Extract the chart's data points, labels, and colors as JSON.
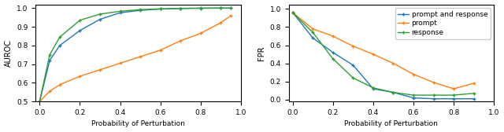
{
  "x_auroc": [
    0.0,
    0.05,
    0.1,
    0.2,
    0.3,
    0.4,
    0.5,
    0.6,
    0.7,
    0.8,
    0.9,
    0.95
  ],
  "auroc_prompt_and_response": [
    0.5,
    0.72,
    0.8,
    0.88,
    0.94,
    0.975,
    0.988,
    0.995,
    0.998,
    0.999,
    1.0,
    1.0
  ],
  "auroc_prompt": [
    0.5,
    0.555,
    0.59,
    0.635,
    0.67,
    0.705,
    0.74,
    0.775,
    0.825,
    0.865,
    0.922,
    0.96
  ],
  "auroc_response": [
    0.5,
    0.75,
    0.845,
    0.935,
    0.968,
    0.983,
    0.992,
    0.996,
    0.999,
    1.0,
    1.0,
    1.0
  ],
  "x_fpr": [
    0.0,
    0.1,
    0.2,
    0.3,
    0.4,
    0.5,
    0.6,
    0.7,
    0.8,
    0.9
  ],
  "fpr_prompt_and_response": [
    0.96,
    0.68,
    0.52,
    0.38,
    0.12,
    0.08,
    0.02,
    0.01,
    0.01,
    0.01
  ],
  "fpr_prompt": [
    0.96,
    0.78,
    0.7,
    0.59,
    0.5,
    0.4,
    0.28,
    0.19,
    0.12,
    0.18
  ],
  "fpr_response": [
    0.96,
    0.74,
    0.45,
    0.24,
    0.13,
    0.08,
    0.05,
    0.05,
    0.05,
    0.07
  ],
  "color_prompt_and_response": "#1f77b4",
  "color_prompt": "#ff7f0e",
  "color_response": "#2ca02c",
  "ylabel_left": "AUROC",
  "ylabel_right": "FPR",
  "xlabel": "Probability of Perturbation",
  "ylim_left": [
    0.5,
    1.02
  ],
  "ylim_right": [
    -0.02,
    1.05
  ],
  "xlim": [
    -0.02,
    1.0
  ],
  "legend_labels": [
    "prompt and response",
    "prompt",
    "response"
  ],
  "yticks_left": [
    0.5,
    0.6,
    0.7,
    0.8,
    0.9,
    1.0
  ],
  "yticks_right": [
    0.0,
    0.2,
    0.4,
    0.6,
    0.8,
    1.0
  ],
  "xticks": [
    0.0,
    0.2,
    0.4,
    0.6,
    0.8,
    1.0
  ]
}
